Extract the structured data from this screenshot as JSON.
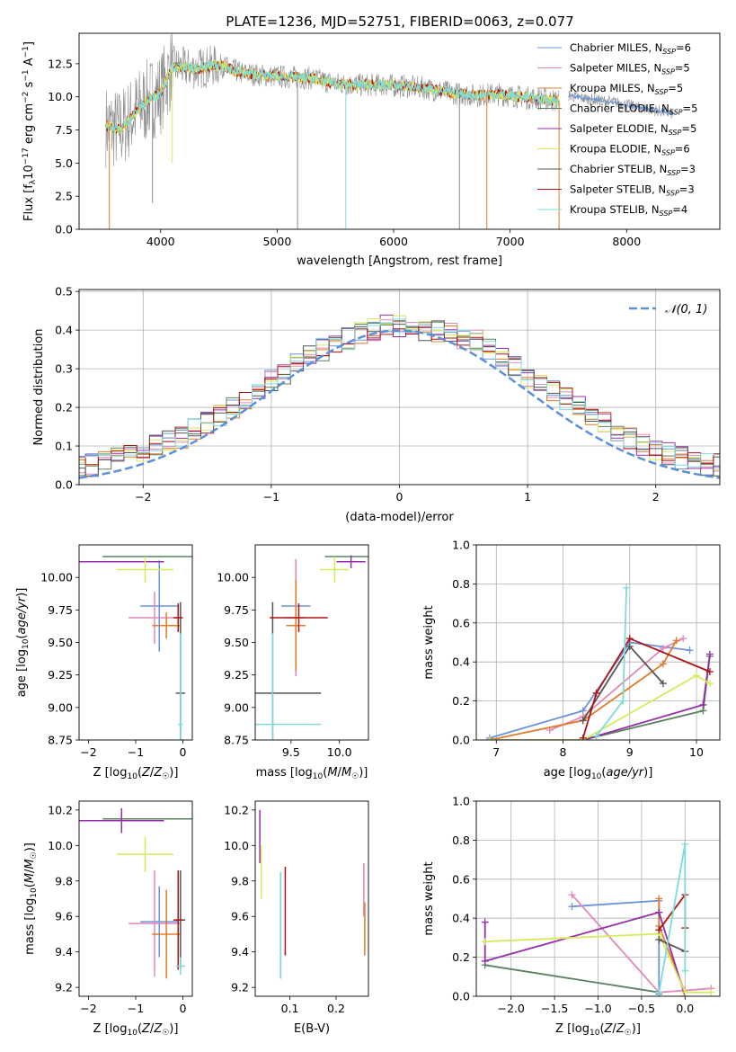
{
  "title": "PLATE=1236, MJD=52751, FIBERID=0063, z=0.077",
  "colors": {
    "chabrier_miles": "#6a93d8",
    "salpeter_miles": "#e287b9",
    "kroupa_miles": "#e07b28",
    "chabrier_elodie": "#5c805e",
    "salpeter_elodie": "#9531a8",
    "kroupa_elodie": "#d7ea5c",
    "chabrier_stelib": "#555555",
    "salpeter_stelib": "#b01313",
    "kroupa_stelib": "#7fdada",
    "data_gray": "#8c8c8c",
    "normal_line": "#5b8fd6"
  },
  "chart_data": [
    {
      "type": "line",
      "panel": "spectrum",
      "xlabel": "wavelength [Angstrom, rest frame]",
      "ylabel": "Flux [f_λ10^-17 erg cm^-2 s^-1 A^-1]",
      "xlim": [
        3300,
        8800
      ],
      "ylim": [
        0,
        14.8
      ],
      "xticks": [
        4000,
        5000,
        6000,
        7000,
        8000
      ],
      "yticks": [
        0.0,
        2.5,
        5.0,
        7.5,
        10.0,
        12.5
      ],
      "legend_position": "top-right",
      "legend": [
        {
          "label": "Chabrier MILES, N",
          "n": "6",
          "color_key": "chabrier_miles"
        },
        {
          "label": "Salpeter MILES, N",
          "n": "5",
          "color_key": "salpeter_miles"
        },
        {
          "label": "Kroupa MILES, N",
          "n": "5",
          "color_key": "kroupa_miles"
        },
        {
          "label": "Chabrier ELODIE, N",
          "n": "5",
          "color_key": "chabrier_elodie"
        },
        {
          "label": "Salpeter ELODIE, N",
          "n": "5",
          "color_key": "salpeter_elodie"
        },
        {
          "label": "Kroupa ELODIE, N",
          "n": "6",
          "color_key": "kroupa_elodie"
        },
        {
          "label": "Chabrier STELIB, N",
          "n": "3",
          "color_key": "chabrier_stelib"
        },
        {
          "label": "Salpeter STELIB, N",
          "n": "3",
          "color_key": "salpeter_stelib"
        },
        {
          "label": "Kroupa STELIB, N",
          "n": "4",
          "color_key": "kroupa_stelib"
        }
      ],
      "legend_subscript": "SSP",
      "continuum": [
        [
          3530,
          7.8
        ],
        [
          3650,
          7.5
        ],
        [
          3800,
          9.0
        ],
        [
          3900,
          9.8
        ],
        [
          4000,
          10.3
        ],
        [
          4100,
          12.3
        ],
        [
          4300,
          12.1
        ],
        [
          4500,
          12.4
        ],
        [
          4700,
          11.8
        ],
        [
          4900,
          11.6
        ],
        [
          5100,
          11.5
        ],
        [
          5300,
          11.4
        ],
        [
          5500,
          11.0
        ],
        [
          5700,
          10.9
        ],
        [
          5900,
          10.9
        ],
        [
          6100,
          10.8
        ],
        [
          6300,
          10.6
        ],
        [
          6500,
          10.3
        ],
        [
          6700,
          10.1
        ],
        [
          6900,
          10.2
        ],
        [
          7100,
          10.0
        ],
        [
          7300,
          9.8
        ],
        [
          7420,
          9.7
        ]
      ],
      "red_continuum": [
        [
          7500,
          10.1
        ],
        [
          7700,
          9.8
        ],
        [
          7900,
          9.6
        ],
        [
          8100,
          9.2
        ],
        [
          8300,
          8.9
        ],
        [
          8400,
          8.7
        ]
      ],
      "absorption_lines": [
        [
          3560,
          0.0
        ],
        [
          3930,
          2.0
        ],
        [
          4100,
          5.0
        ],
        [
          5175,
          0.0
        ],
        [
          5590,
          0.0
        ],
        [
          6565,
          0.0
        ],
        [
          6800,
          0.0
        ],
        [
          7420,
          0.0
        ]
      ]
    },
    {
      "type": "histogram",
      "panel": "residuals",
      "xlabel": "(data-model)/error",
      "ylabel": "Normed distribution",
      "xlim": [
        -2.5,
        2.5
      ],
      "ylim": [
        0,
        0.505
      ],
      "xticks": [
        -2,
        -1,
        0,
        1,
        2
      ],
      "yticks": [
        0.0,
        0.1,
        0.2,
        0.3,
        0.4,
        0.5
      ],
      "grid": true,
      "legend": "𝒩(0, 1)",
      "legend_position": "top-right",
      "bin_width": 0.1,
      "base_histogram": [
        0.02,
        0.03,
        0.03,
        0.04,
        0.04,
        0.05,
        0.05,
        0.06,
        0.07,
        0.08,
        0.09,
        0.1,
        0.11,
        0.12,
        0.14,
        0.16,
        0.18,
        0.2,
        0.22,
        0.25,
        0.27,
        0.29,
        0.31,
        0.33,
        0.35,
        0.37,
        0.38,
        0.39,
        0.4,
        0.41,
        0.41,
        0.41,
        0.4,
        0.4,
        0.39,
        0.38,
        0.37,
        0.35,
        0.33,
        0.31,
        0.28,
        0.26,
        0.24,
        0.22,
        0.2,
        0.18,
        0.16,
        0.14,
        0.12,
        0.1,
        0.09,
        0.08,
        0.07,
        0.06,
        0.05,
        0.05,
        0.04,
        0.04,
        0.03,
        0.03,
        0.02
      ]
    },
    {
      "type": "scatter",
      "panel": "age-vs-Z",
      "xlabel": "Z [log10(Z/Z☉)]",
      "ylabel": "age  [log10(age/yr)]",
      "xlim": [
        -2.2,
        0.2
      ],
      "ylim": [
        8.75,
        10.25
      ],
      "xticks": [
        -2,
        -1,
        0
      ],
      "yticks": [
        8.75,
        9.0,
        9.25,
        9.5,
        9.75,
        10.0
      ],
      "points": [
        {
          "key": "chabrier_miles",
          "x": -0.5,
          "xerr": 0.4,
          "y": 9.78,
          "yerr": 0.35
        },
        {
          "key": "salpeter_miles",
          "x": -0.6,
          "xerr": 0.55,
          "y": 9.69,
          "yerr": 0.2
        },
        {
          "key": "kroupa_miles",
          "x": -0.35,
          "xerr": 0.3,
          "y": 9.63,
          "yerr": 0.1
        },
        {
          "key": "chabrier_elodie",
          "x": -0.5,
          "xerr": 1.2,
          "y": 10.16,
          "yerr": 0.0
        },
        {
          "key": "salpeter_elodie",
          "x": -1.3,
          "xerr": 0.9,
          "y": 10.12,
          "yerr": 0.0
        },
        {
          "key": "kroupa_elodie",
          "x": -0.8,
          "xerr": 0.6,
          "y": 10.06,
          "yerr": 0.1
        },
        {
          "key": "chabrier_stelib",
          "x": -0.05,
          "xerr": 0.1,
          "y": 9.11,
          "yerr": 0.7
        },
        {
          "key": "salpeter_stelib",
          "x": -0.1,
          "xerr": 0.1,
          "y": 9.69,
          "yerr": 0.11
        },
        {
          "key": "kroupa_stelib",
          "x": -0.05,
          "xerr": 0.05,
          "y": 8.87,
          "yerr": 0.7
        }
      ]
    },
    {
      "type": "scatter",
      "panel": "age-vs-mass",
      "xlabel": "mass [log10(M/M☉)]",
      "ylabel": "",
      "xlim": [
        9.13,
        10.3
      ],
      "ylim": [
        8.75,
        10.25
      ],
      "xticks": [
        9.5,
        10.0
      ],
      "yticks": [
        8.75,
        9.0,
        9.25,
        9.5,
        9.75,
        10.0
      ],
      "points": [
        {
          "key": "chabrier_miles",
          "x": 9.55,
          "xerr": 0.15,
          "y": 9.78,
          "yerr": 0.0
        },
        {
          "key": "salpeter_miles",
          "x": 9.55,
          "xerr": 0.1,
          "y": 9.69,
          "yerr": 0.45
        },
        {
          "key": "kroupa_miles",
          "x": 9.55,
          "xerr": 0.1,
          "y": 9.63,
          "yerr": 0.35
        },
        {
          "key": "chabrier_elodie",
          "x": 10.15,
          "xerr": 0.3,
          "y": 10.16,
          "yerr": 0.0
        },
        {
          "key": "salpeter_elodie",
          "x": 10.12,
          "xerr": 0.15,
          "y": 10.12,
          "yerr": 0.05
        },
        {
          "key": "kroupa_elodie",
          "x": 9.95,
          "xerr": 0.15,
          "y": 10.06,
          "yerr": 0.1
        },
        {
          "key": "chabrier_stelib",
          "x": 9.31,
          "xerr": 0.5,
          "y": 9.11,
          "yerr": 0.7
        },
        {
          "key": "salpeter_stelib",
          "x": 9.58,
          "xerr": 0.3,
          "y": 9.69,
          "yerr": 0.11
        },
        {
          "key": "kroupa_stelib",
          "x": 9.31,
          "xerr": 0.5,
          "y": 8.87,
          "yerr": 0.7
        }
      ]
    },
    {
      "type": "line",
      "panel": "mass-weight-vs-age",
      "xlabel": "age  [log10(age/yr)]",
      "ylabel": "mass weight",
      "xlim": [
        6.7,
        10.35
      ],
      "ylim": [
        0,
        1.0
      ],
      "xticks": [
        7,
        8,
        9,
        10
      ],
      "yticks": [
        0.0,
        0.2,
        0.4,
        0.6,
        0.8,
        1.0
      ],
      "grid": true,
      "series": [
        {
          "key": "chabrier_miles",
          "x": [
            6.9,
            8.3,
            9.0,
            9.9
          ],
          "y": [
            0.01,
            0.15,
            0.5,
            0.46
          ]
        },
        {
          "key": "salpeter_miles",
          "x": [
            7.8,
            8.3,
            9.5,
            9.8
          ],
          "y": [
            0.05,
            0.12,
            0.47,
            0.52
          ]
        },
        {
          "key": "kroupa_miles",
          "x": [
            6.9,
            8.3,
            9.5,
            9.7
          ],
          "y": [
            0.0,
            0.1,
            0.39,
            0.51
          ]
        },
        {
          "key": "chabrier_elodie",
          "x": [
            6.9,
            8.3,
            10.1,
            10.2
          ],
          "y": [
            0.0,
            0.0,
            0.15,
            0.43
          ]
        },
        {
          "key": "salpeter_elodie",
          "x": [
            6.9,
            8.3,
            10.1,
            10.2
          ],
          "y": [
            0.0,
            0.0,
            0.18,
            0.44
          ]
        },
        {
          "key": "kroupa_elodie",
          "x": [
            6.9,
            8.3,
            10.0,
            10.2
          ],
          "y": [
            0.0,
            0.0,
            0.33,
            0.29
          ]
        },
        {
          "key": "chabrier_stelib",
          "x": [
            8.3,
            9.0,
            9.5
          ],
          "y": [
            0.1,
            0.48,
            0.29
          ]
        },
        {
          "key": "salpeter_stelib",
          "x": [
            8.3,
            8.5,
            9.0,
            10.2
          ],
          "y": [
            0.01,
            0.24,
            0.52,
            0.35
          ]
        },
        {
          "key": "kroupa_stelib",
          "x": [
            8.5,
            8.9,
            8.95
          ],
          "y": [
            0.02,
            0.2,
            0.78
          ]
        }
      ]
    },
    {
      "type": "scatter",
      "panel": "mass-vs-Z",
      "xlabel": "Z [log10(Z/Z☉)]",
      "ylabel": "mass [log10(M/M☉)]",
      "xlim": [
        -2.2,
        0.2
      ],
      "ylim": [
        9.15,
        10.25
      ],
      "xticks": [
        -2,
        -1,
        0
      ],
      "yticks": [
        9.2,
        9.4,
        9.6,
        9.8,
        10.0,
        10.2
      ],
      "points": [
        {
          "key": "chabrier_miles",
          "x": -0.5,
          "xerr": 0.4,
          "y": 9.57,
          "yerr": 0.2
        },
        {
          "key": "salpeter_miles",
          "x": -0.6,
          "xerr": 0.55,
          "y": 9.56,
          "yerr": 0.3
        },
        {
          "key": "kroupa_miles",
          "x": -0.35,
          "xerr": 0.3,
          "y": 9.5,
          "yerr": 0.25
        },
        {
          "key": "chabrier_elodie",
          "x": -0.5,
          "xerr": 1.2,
          "y": 10.15,
          "yerr": 0.0
        },
        {
          "key": "salpeter_elodie",
          "x": -1.3,
          "xerr": 0.9,
          "y": 10.14,
          "yerr": 0.07
        },
        {
          "key": "kroupa_elodie",
          "x": -0.8,
          "xerr": 0.6,
          "y": 9.95,
          "yerr": 0.1
        },
        {
          "key": "chabrier_stelib",
          "x": -0.05,
          "xerr": 0.1,
          "y": 9.58,
          "yerr": 0.28
        },
        {
          "key": "salpeter_stelib",
          "x": -0.1,
          "xerr": 0.1,
          "y": 9.58,
          "yerr": 0.28
        },
        {
          "key": "kroupa_stelib",
          "x": -0.05,
          "xerr": 0.1,
          "y": 9.32,
          "yerr": 0.05
        }
      ]
    },
    {
      "type": "scatter",
      "panel": "mass-vs-ebv",
      "xlabel": "E(B-V)",
      "ylabel": "",
      "xlim": [
        0.025,
        0.27
      ],
      "ylim": [
        9.15,
        10.25
      ],
      "xticks": [
        0.1,
        0.2
      ],
      "yticks": [
        9.2,
        9.4,
        9.6,
        9.8,
        10.0,
        10.2
      ],
      "points": [
        {
          "key": "salpeter_elodie",
          "x": 0.035,
          "y": 10.05,
          "yerr": 0.15
        },
        {
          "key": "kroupa_elodie",
          "x": 0.038,
          "y": 9.85,
          "yerr": 0.15
        },
        {
          "key": "chabrier_stelib",
          "x": 0.08,
          "y": 9.55,
          "yerr": 0.3
        },
        {
          "key": "kroupa_stelib",
          "x": 0.08,
          "y": 9.55,
          "yerr": 0.3
        },
        {
          "key": "salpeter_stelib",
          "x": 0.09,
          "y": 9.63,
          "yerr": 0.25
        },
        {
          "key": "salpeter_miles",
          "x": 0.26,
          "y": 9.75,
          "yerr": 0.15
        },
        {
          "key": "kroupa_miles",
          "x": 0.262,
          "y": 9.53,
          "yerr": 0.15
        }
      ]
    },
    {
      "type": "line",
      "panel": "mass-weight-vs-Z",
      "xlabel": "Z [log10(Z/Z☉)]",
      "ylabel": "mass weight",
      "xlim": [
        -2.4,
        0.4
      ],
      "ylim": [
        0,
        1.0
      ],
      "xticks": [
        -2.0,
        -1.5,
        -1.0,
        -0.5,
        0.0
      ],
      "yticks": [
        0.0,
        0.2,
        0.4,
        0.6,
        0.8,
        1.0
      ],
      "grid": true,
      "series": [
        {
          "key": "chabrier_miles",
          "x": [
            -1.3,
            -0.3,
            -0.3
          ],
          "y": [
            0.46,
            0.49,
            0.01
          ]
        },
        {
          "key": "salpeter_miles",
          "x": [
            -1.3,
            -0.3,
            0.0,
            0.3
          ],
          "y": [
            0.52,
            0.02,
            0.03,
            0.04
          ]
        },
        {
          "key": "kroupa_miles",
          "x": [
            -0.3,
            -0.3,
            0.0
          ],
          "y": [
            0.5,
            0.36,
            0.02
          ]
        },
        {
          "key": "chabrier_elodie",
          "x": [
            -2.3,
            -0.3
          ],
          "y": [
            0.16,
            0.02
          ]
        },
        {
          "key": "salpeter_elodie",
          "x": [
            -2.3,
            -2.3,
            -0.3,
            0.0
          ],
          "y": [
            0.38,
            0.18,
            0.43,
            0.0
          ]
        },
        {
          "key": "kroupa_elodie",
          "x": [
            -2.3,
            -0.3,
            0.0,
            0.3
          ],
          "y": [
            0.28,
            0.32,
            0.02,
            0.02
          ]
        },
        {
          "key": "chabrier_stelib",
          "x": [
            -0.3,
            0.0
          ],
          "y": [
            0.29,
            0.23
          ]
        },
        {
          "key": "salpeter_stelib",
          "x": [
            -0.3,
            0.0,
            0.0
          ],
          "y": [
            0.34,
            0.52,
            0.35
          ]
        },
        {
          "key": "kroupa_stelib",
          "x": [
            -0.3,
            0.0,
            0.0
          ],
          "y": [
            0.02,
            0.78,
            0.13
          ]
        }
      ]
    }
  ]
}
